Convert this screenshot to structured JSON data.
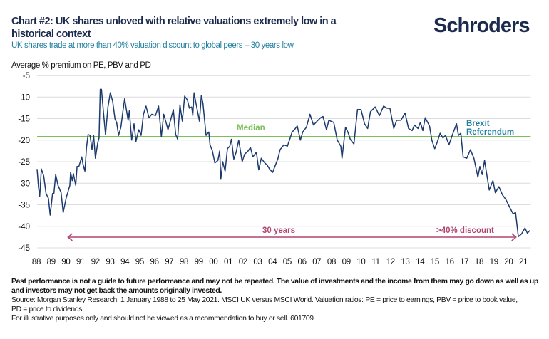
{
  "header": {
    "title": "Chart #2: UK shares unloved with relative valuations extremely low in a historical context",
    "subtitle": "UK shares trade at more than 40% valuation discount to global peers – 30 years low",
    "logo": "Schroders"
  },
  "footer": {
    "disclaimer": "Past performance is not a guide to future performance and may not be repeated. The value of investments and the income from them may go down as well as up and investors may not get back the amounts originally invested.",
    "source": "Source: Morgan Stanley Research, 1 January 1988 to 25 May 2021. MSCI UK versus MSCI World. Valuation ratios: PE = price to earnings, PBV = price to book value, PD = price to dividends.",
    "note": "For illustrative purposes only and should not be viewed as a recommendation to buy or sell. 601709"
  },
  "colors": {
    "line": "#1c3a6e",
    "median": "#7cbf5a",
    "median_label": "#7cbf5a",
    "brexit": "#1f7fa0",
    "arrow": "#b0466f",
    "grid": "#dcdcdc"
  },
  "chart_data": {
    "type": "line",
    "title": "",
    "ylabel": "Average % premium on PE, PBV and PD",
    "xlabel": "",
    "ylim": [
      -45,
      -5
    ],
    "yticks": [
      "-5",
      "-10",
      "-15",
      "-20",
      "-25",
      "-30",
      "-35",
      "-40",
      "-45"
    ],
    "xlim": [
      1988,
      2021.45
    ],
    "xticks": [
      "88",
      "89",
      "90",
      "91",
      "92",
      "93",
      "94",
      "95",
      "96",
      "97",
      "98",
      "99",
      "00",
      "01",
      "02",
      "03",
      "04",
      "05",
      "06",
      "07",
      "08",
      "09",
      "10",
      "11",
      "12",
      "13",
      "14",
      "15",
      "16",
      "17",
      "18",
      "19",
      "20",
      "21"
    ],
    "grid": "horizontal",
    "median": {
      "label": "Median",
      "value": -19.2
    },
    "annotations": {
      "brexit": [
        "Brexit",
        "Referendum"
      ],
      "span_label": "30 years",
      "discount_label": ">40% discount",
      "arrow_from": 1990.0,
      "arrow_to": 2020.45
    },
    "series": [
      {
        "points": [
          [
            1988.0,
            -26.7
          ],
          [
            1988.1,
            -31.1
          ],
          [
            1988.18,
            -33.0
          ],
          [
            1988.29,
            -26.7
          ],
          [
            1988.45,
            -28.3
          ],
          [
            1988.61,
            -32.4
          ],
          [
            1988.77,
            -33.5
          ],
          [
            1988.89,
            -37.4
          ],
          [
            1989.05,
            -32.4
          ],
          [
            1989.14,
            -32.4
          ],
          [
            1989.26,
            -28.0
          ],
          [
            1989.42,
            -30.5
          ],
          [
            1989.63,
            -32.2
          ],
          [
            1989.77,
            -36.8
          ],
          [
            1989.98,
            -33.3
          ],
          [
            1990.22,
            -30.5
          ],
          [
            1990.27,
            -27.5
          ],
          [
            1990.38,
            -29.4
          ],
          [
            1990.46,
            -27.8
          ],
          [
            1990.62,
            -30.5
          ],
          [
            1990.71,
            -26.1
          ],
          [
            1990.83,
            -26.1
          ],
          [
            1991.03,
            -23.9
          ],
          [
            1991.11,
            -25.6
          ],
          [
            1991.24,
            -27.2
          ],
          [
            1991.35,
            -21.7
          ],
          [
            1991.46,
            -18.7
          ],
          [
            1991.59,
            -18.9
          ],
          [
            1991.72,
            -22.2
          ],
          [
            1991.83,
            -18.9
          ],
          [
            1991.95,
            -24.2
          ],
          [
            1992.11,
            -20.6
          ],
          [
            1992.2,
            -19.5
          ],
          [
            1992.28,
            -8.2
          ],
          [
            1992.36,
            -8.2
          ],
          [
            1992.52,
            -14.5
          ],
          [
            1992.64,
            -18.7
          ],
          [
            1992.8,
            -12.3
          ],
          [
            1992.96,
            -9.0
          ],
          [
            1993.12,
            -11.0
          ],
          [
            1993.28,
            -15.1
          ],
          [
            1993.39,
            -15.9
          ],
          [
            1993.52,
            -18.9
          ],
          [
            1993.68,
            -17.0
          ],
          [
            1993.81,
            -13.4
          ],
          [
            1993.93,
            -10.4
          ],
          [
            1994.17,
            -15.4
          ],
          [
            1994.25,
            -13.2
          ],
          [
            1994.41,
            -20.0
          ],
          [
            1994.57,
            -16.2
          ],
          [
            1994.7,
            -20.3
          ],
          [
            1994.89,
            -17.6
          ],
          [
            1995.05,
            -18.9
          ],
          [
            1995.21,
            -14.0
          ],
          [
            1995.38,
            -12.1
          ],
          [
            1995.58,
            -14.8
          ],
          [
            1995.78,
            -14.0
          ],
          [
            1996.02,
            -14.3
          ],
          [
            1996.23,
            -12.1
          ],
          [
            1996.42,
            -19.2
          ],
          [
            1996.58,
            -14.0
          ],
          [
            1996.74,
            -15.9
          ],
          [
            1996.87,
            -17.6
          ],
          [
            1997.03,
            -15.6
          ],
          [
            1997.23,
            -12.9
          ],
          [
            1997.39,
            -18.7
          ],
          [
            1997.52,
            -19.8
          ],
          [
            1997.68,
            -11.8
          ],
          [
            1997.84,
            -15.6
          ],
          [
            1998.0,
            -9.8
          ],
          [
            1998.19,
            -10.7
          ],
          [
            1998.32,
            -12.6
          ],
          [
            1998.48,
            -12.3
          ],
          [
            1998.55,
            -14.3
          ],
          [
            1998.64,
            -9.0
          ],
          [
            1998.77,
            -11.5
          ],
          [
            1999.0,
            -15.6
          ],
          [
            1999.13,
            -9.6
          ],
          [
            1999.24,
            -11.5
          ],
          [
            1999.45,
            -18.9
          ],
          [
            1999.64,
            -18.1
          ],
          [
            1999.72,
            -21.1
          ],
          [
            1999.88,
            -22.5
          ],
          [
            2000.05,
            -25.3
          ],
          [
            2000.25,
            -24.7
          ],
          [
            2000.37,
            -22.5
          ],
          [
            2000.45,
            -29.1
          ],
          [
            2000.58,
            -25.0
          ],
          [
            2000.74,
            -27.2
          ],
          [
            2000.9,
            -22.0
          ],
          [
            2001.06,
            -21.4
          ],
          [
            2001.17,
            -19.8
          ],
          [
            2001.33,
            -24.4
          ],
          [
            2001.49,
            -22.8
          ],
          [
            2001.66,
            -20.0
          ],
          [
            2001.9,
            -25.0
          ],
          [
            2002.06,
            -23.3
          ],
          [
            2002.3,
            -22.5
          ],
          [
            2002.46,
            -21.7
          ],
          [
            2002.62,
            -23.9
          ],
          [
            2002.86,
            -22.8
          ],
          [
            2003.02,
            -26.9
          ],
          [
            2003.19,
            -24.2
          ],
          [
            2003.43,
            -25.3
          ],
          [
            2003.59,
            -25.8
          ],
          [
            2003.75,
            -26.7
          ],
          [
            2003.96,
            -27.5
          ],
          [
            2004.15,
            -25.8
          ],
          [
            2004.31,
            -24.4
          ],
          [
            2004.47,
            -22.2
          ],
          [
            2004.72,
            -21.1
          ],
          [
            2004.96,
            -21.4
          ],
          [
            2005.12,
            -19.8
          ],
          [
            2005.28,
            -18.1
          ],
          [
            2005.44,
            -17.6
          ],
          [
            2005.63,
            -16.7
          ],
          [
            2005.84,
            -20.0
          ],
          [
            2006.0,
            -18.1
          ],
          [
            2006.25,
            -17.0
          ],
          [
            2006.49,
            -14.0
          ],
          [
            2006.73,
            -16.5
          ],
          [
            2006.97,
            -15.6
          ],
          [
            2007.21,
            -14.8
          ],
          [
            2007.37,
            -14.5
          ],
          [
            2007.61,
            -17.6
          ],
          [
            2007.77,
            -15.4
          ],
          [
            2008.1,
            -15.9
          ],
          [
            2008.34,
            -20.0
          ],
          [
            2008.58,
            -21.4
          ],
          [
            2008.66,
            -24.2
          ],
          [
            2008.9,
            -17.0
          ],
          [
            2009.06,
            -18.1
          ],
          [
            2009.22,
            -19.8
          ],
          [
            2009.47,
            -20.9
          ],
          [
            2009.71,
            -12.9
          ],
          [
            2009.95,
            -12.9
          ],
          [
            2010.19,
            -16.2
          ],
          [
            2010.4,
            -17.3
          ],
          [
            2010.59,
            -13.4
          ],
          [
            2010.91,
            -12.3
          ],
          [
            2011.2,
            -14.3
          ],
          [
            2011.48,
            -12.1
          ],
          [
            2011.72,
            -12.6
          ],
          [
            2011.91,
            -12.6
          ],
          [
            2012.17,
            -17.3
          ],
          [
            2012.36,
            -15.4
          ],
          [
            2012.65,
            -15.4
          ],
          [
            2012.93,
            -13.7
          ],
          [
            2013.17,
            -17.3
          ],
          [
            2013.41,
            -17.8
          ],
          [
            2013.57,
            -16.5
          ],
          [
            2013.81,
            -17.3
          ],
          [
            2013.97,
            -15.9
          ],
          [
            2014.14,
            -17.8
          ],
          [
            2014.3,
            -14.8
          ],
          [
            2014.59,
            -16.7
          ],
          [
            2014.75,
            -20.0
          ],
          [
            2014.94,
            -22.0
          ],
          [
            2015.1,
            -20.6
          ],
          [
            2015.31,
            -18.4
          ],
          [
            2015.5,
            -19.5
          ],
          [
            2015.67,
            -18.9
          ],
          [
            2015.91,
            -21.1
          ],
          [
            2016.15,
            -18.7
          ],
          [
            2016.42,
            -16.2
          ],
          [
            2016.55,
            -18.9
          ],
          [
            2016.71,
            -18.4
          ],
          [
            2016.87,
            -23.9
          ],
          [
            2017.11,
            -24.2
          ],
          [
            2017.36,
            -22.2
          ],
          [
            2017.6,
            -24.2
          ],
          [
            2017.87,
            -28.6
          ],
          [
            2018.0,
            -26.1
          ],
          [
            2018.16,
            -28.0
          ],
          [
            2018.32,
            -24.7
          ],
          [
            2018.64,
            -31.6
          ],
          [
            2018.89,
            -29.4
          ],
          [
            2019.05,
            -32.2
          ],
          [
            2019.29,
            -30.8
          ],
          [
            2019.53,
            -32.7
          ],
          [
            2019.77,
            -33.8
          ],
          [
            2020.01,
            -35.5
          ],
          [
            2020.25,
            -37.1
          ],
          [
            2020.42,
            -36.8
          ],
          [
            2020.61,
            -42.4
          ],
          [
            2020.82,
            -41.8
          ],
          [
            2021.06,
            -40.4
          ],
          [
            2021.22,
            -41.6
          ],
          [
            2021.38,
            -41.0
          ]
        ]
      }
    ]
  }
}
